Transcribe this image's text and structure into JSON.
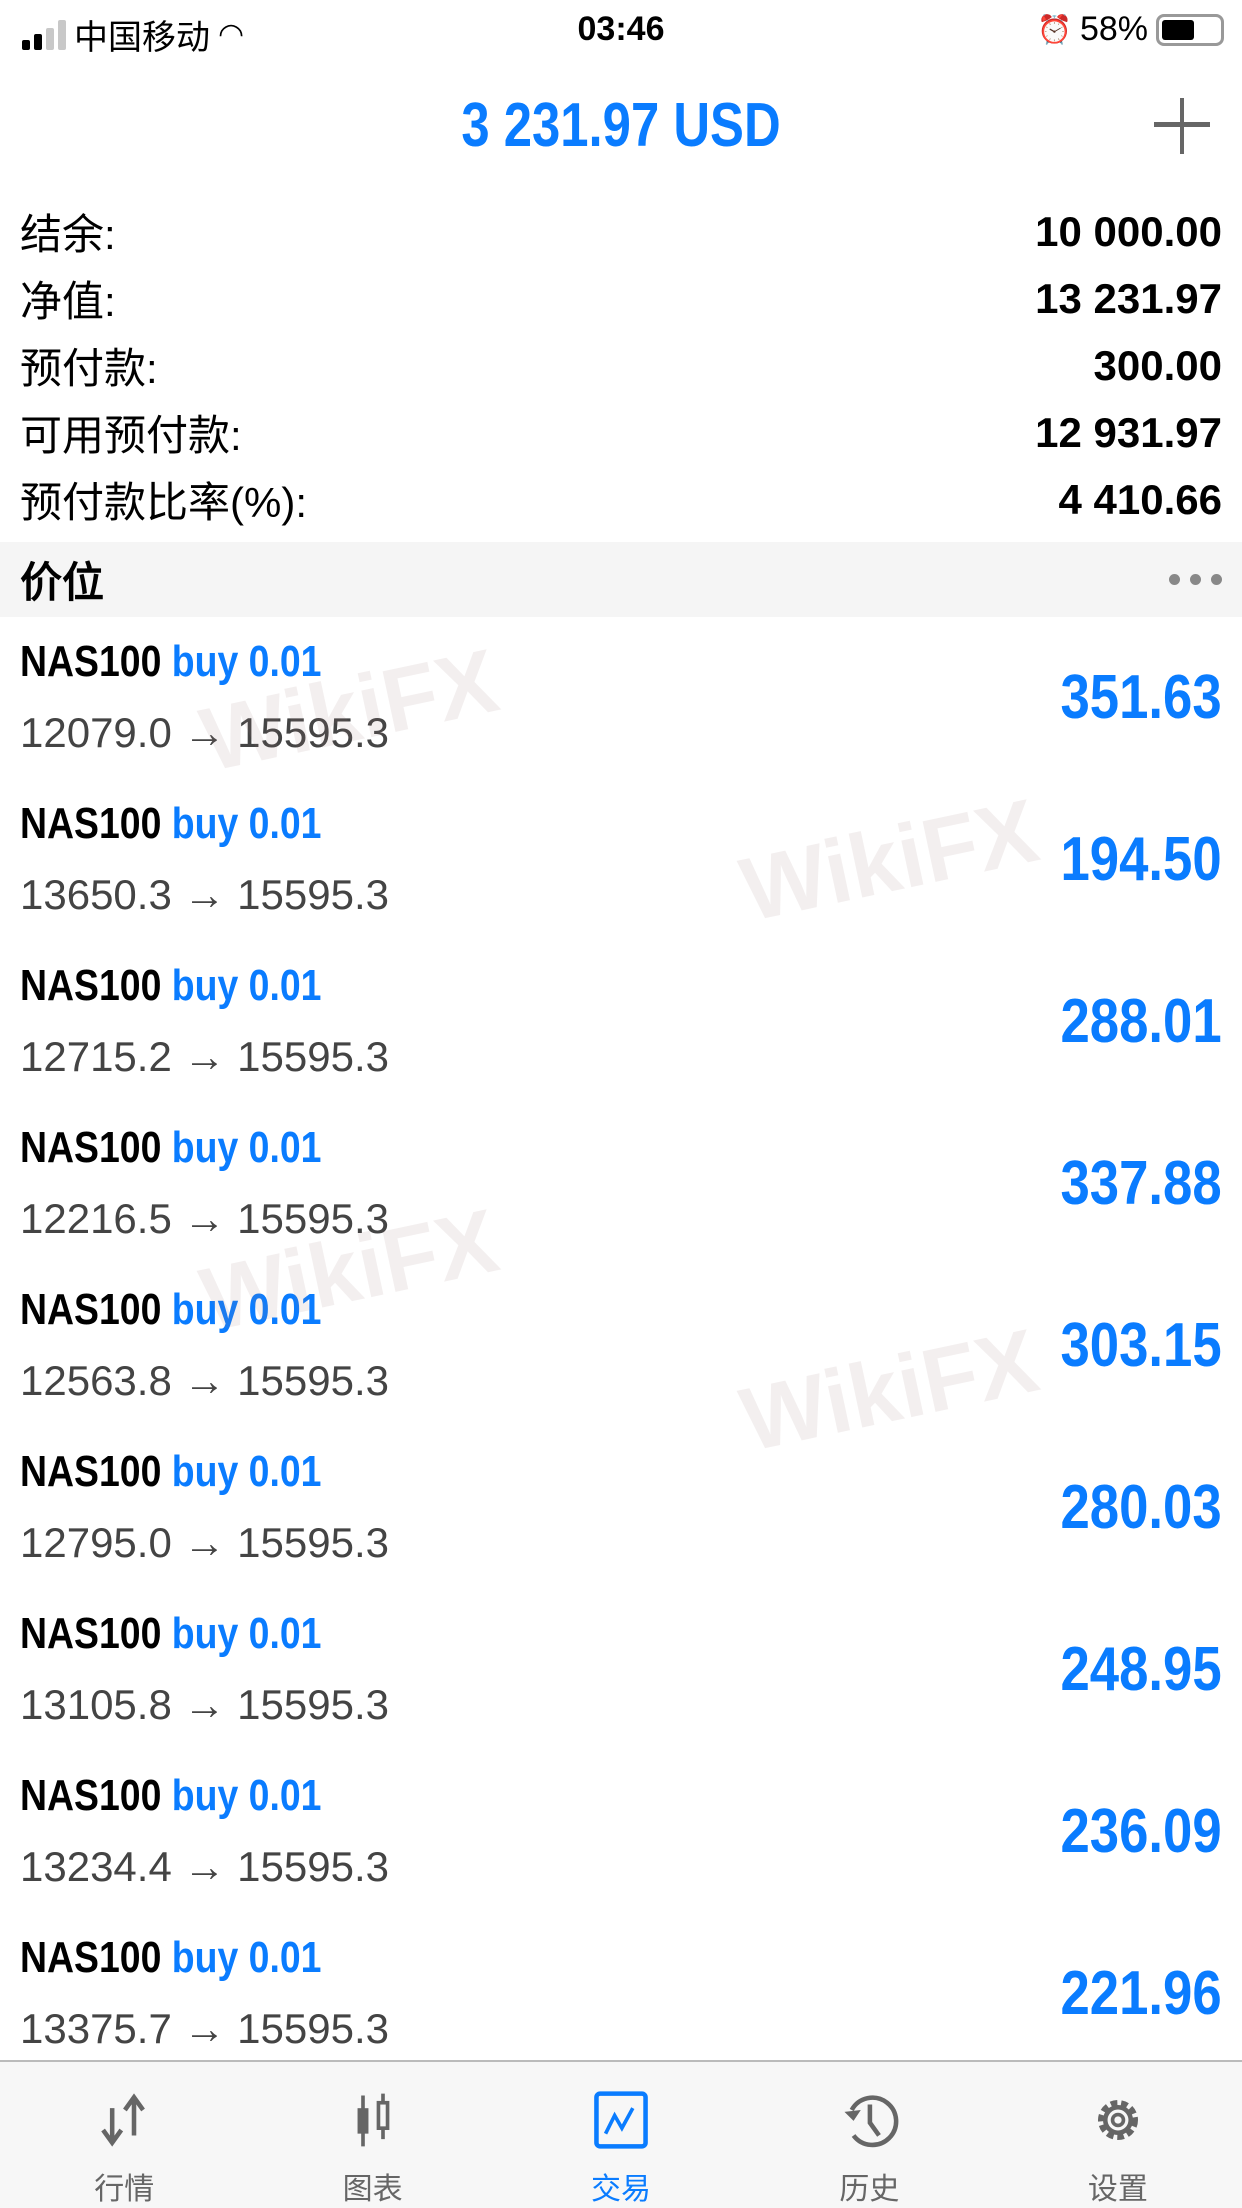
{
  "status": {
    "carrier": "中国移动",
    "time": "03:46",
    "battery": "58%",
    "battery_level": 0.58
  },
  "header": {
    "title": "3 231.97 USD"
  },
  "summary": [
    {
      "label": "结余:",
      "value": "10 000.00"
    },
    {
      "label": "净值:",
      "value": "13 231.97"
    },
    {
      "label": "预付款:",
      "value": "300.00"
    },
    {
      "label": "可用预付款:",
      "value": "12 931.97"
    },
    {
      "label": "预付款比率(%):",
      "value": "4 410.66"
    }
  ],
  "section": {
    "title": "价位"
  },
  "positions": [
    {
      "symbol": "NAS100",
      "side": "buy 0.01",
      "prices": "12079.0 → 15595.3",
      "profit": "351.63"
    },
    {
      "symbol": "NAS100",
      "side": "buy 0.01",
      "prices": "13650.3 → 15595.3",
      "profit": "194.50"
    },
    {
      "symbol": "NAS100",
      "side": "buy 0.01",
      "prices": "12715.2 → 15595.3",
      "profit": "288.01"
    },
    {
      "symbol": "NAS100",
      "side": "buy 0.01",
      "prices": "12216.5 → 15595.3",
      "profit": "337.88"
    },
    {
      "symbol": "NAS100",
      "side": "buy 0.01",
      "prices": "12563.8 → 15595.3",
      "profit": "303.15"
    },
    {
      "symbol": "NAS100",
      "side": "buy 0.01",
      "prices": "12795.0 → 15595.3",
      "profit": "280.03"
    },
    {
      "symbol": "NAS100",
      "side": "buy 0.01",
      "prices": "13105.8 → 15595.3",
      "profit": "248.95"
    },
    {
      "symbol": "NAS100",
      "side": "buy 0.01",
      "prices": "13234.4 → 15595.3",
      "profit": "236.09"
    },
    {
      "symbol": "NAS100",
      "side": "buy 0.01",
      "prices": "13375.7 → 15595.3",
      "profit": "221.96"
    }
  ],
  "watermark": "WikiFX",
  "nav": [
    {
      "label": "行情",
      "icon": "arrows-updown-icon"
    },
    {
      "label": "图表",
      "icon": "candlestick-icon"
    },
    {
      "label": "交易",
      "icon": "trade-chart-icon",
      "active": true
    },
    {
      "label": "历史",
      "icon": "history-icon"
    },
    {
      "label": "设置",
      "icon": "gear-icon"
    }
  ],
  "colors": {
    "accent": "#0a7cff",
    "text": "#000000",
    "muted": "#666666"
  }
}
